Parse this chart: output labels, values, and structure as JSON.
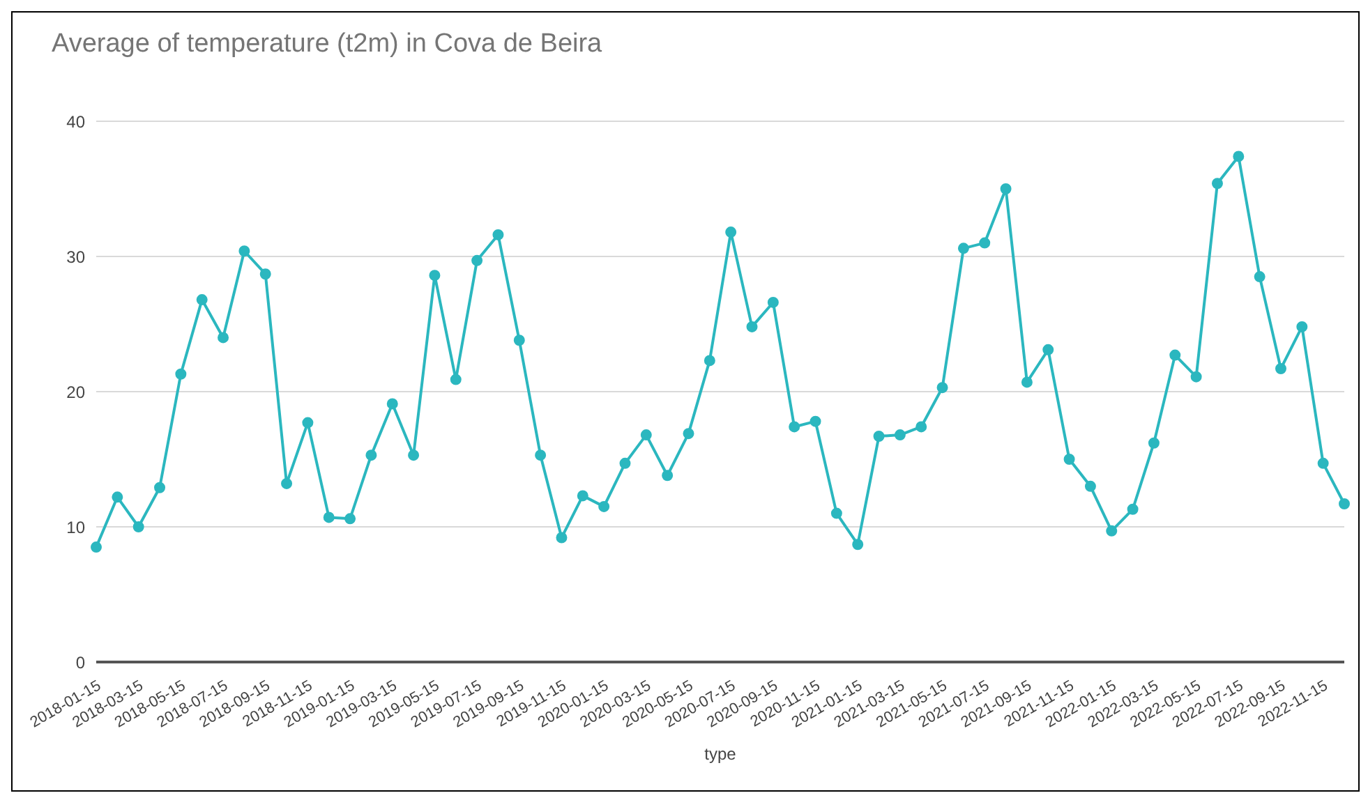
{
  "chart_data": {
    "type": "line",
    "title": "Average of temperature (t2m) in Cova de Beira",
    "xlabel": "type",
    "categories": [
      "2018-01-15",
      null,
      "2018-03-15",
      null,
      "2018-05-15",
      null,
      "2018-07-15",
      null,
      "2018-09-15",
      null,
      "2018-11-15",
      null,
      "2019-01-15",
      null,
      "2019-03-15",
      null,
      "2019-05-15",
      null,
      "2019-07-15",
      null,
      "2019-09-15",
      null,
      "2019-11-15",
      null,
      "2020-01-15",
      null,
      "2020-03-15",
      null,
      "2020-05-15",
      null,
      "2020-07-15",
      null,
      "2020-09-15",
      null,
      "2020-11-15",
      null,
      "2021-01-15",
      null,
      "2021-03-15",
      null,
      "2021-05-15",
      null,
      "2021-07-15",
      null,
      "2021-09-15",
      null,
      "2021-11-15",
      null,
      "2022-01-15",
      null,
      "2022-03-15",
      null,
      "2022-05-15",
      null,
      "2022-07-15",
      null,
      "2022-09-15",
      null,
      "2022-11-15",
      null
    ],
    "series": [
      {
        "color": "#2bb7bf",
        "values": [
          8.5,
          12.2,
          10.0,
          12.9,
          21.3,
          26.8,
          24.0,
          30.4,
          28.7,
          13.2,
          17.7,
          10.7,
          10.6,
          15.3,
          19.1,
          15.3,
          28.6,
          20.9,
          29.7,
          31.6,
          23.8,
          15.3,
          9.2,
          12.3,
          11.5,
          14.7,
          16.8,
          13.8,
          16.9,
          22.3,
          31.8,
          24.8,
          26.6,
          17.4,
          17.8,
          11.0,
          8.7,
          16.7,
          16.8,
          17.4,
          20.3,
          30.6,
          31.0,
          35.0,
          20.7,
          23.1,
          15.0,
          13.0,
          9.7,
          11.3,
          16.2,
          22.7,
          21.1,
          35.4,
          37.4,
          28.5,
          21.7,
          24.8,
          14.7,
          11.7
        ]
      }
    ],
    "ylim": [
      0,
      40
    ],
    "yticks": [
      0,
      10,
      20,
      30,
      40
    ],
    "grid": "y",
    "legend": false,
    "marker": "circle",
    "line_style": "solid"
  }
}
